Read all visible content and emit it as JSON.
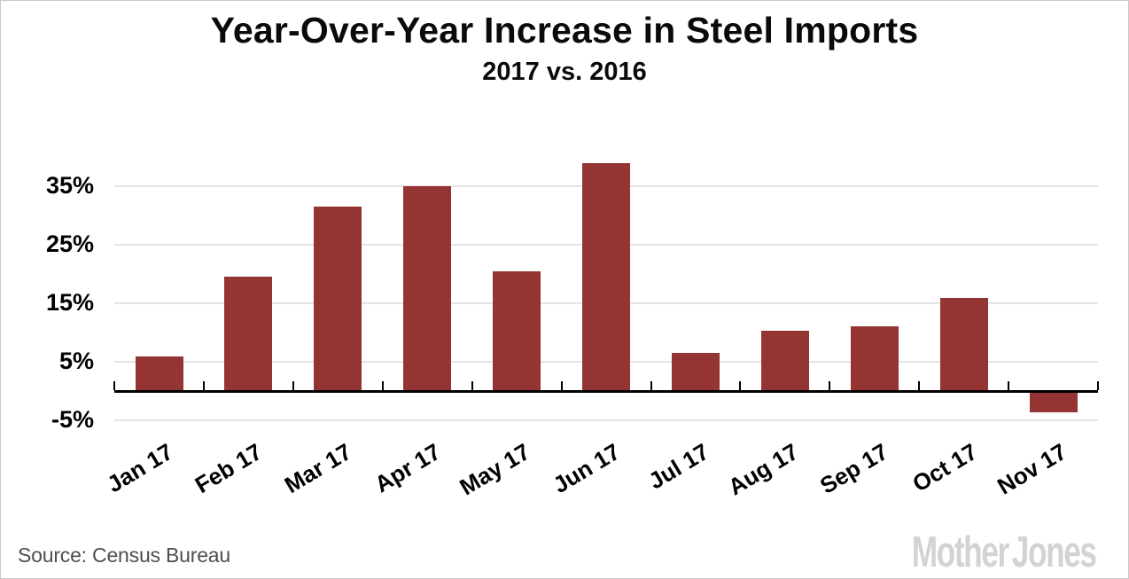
{
  "header": {
    "title": "Year-Over-Year Increase in Steel Imports",
    "subtitle": "2017 vs. 2016"
  },
  "footer": {
    "source": "Source: Census Bureau",
    "logo": "Mother Jones"
  },
  "colors": {
    "bar": "#943534",
    "axis": "#000000",
    "gridline": "#e4e4e4",
    "title_text": "#0a0a0a",
    "source_text": "#4f4f4f",
    "logo_text": "#d3d3d3",
    "frame_border": "#c9c9c9"
  },
  "chart_data": {
    "type": "bar",
    "title": "Year-Over-Year Increase in Steel Imports",
    "subtitle": "2017 vs. 2016",
    "categories": [
      "Jan 17",
      "Feb 17",
      "Mar 17",
      "Apr 17",
      "May 17",
      "Jun 17",
      "Jul 17",
      "Aug 17",
      "Sep 17",
      "Oct 17",
      "Nov 17"
    ],
    "values": [
      5.9,
      19.6,
      31.5,
      35.0,
      20.5,
      39.0,
      6.5,
      10.3,
      11.0,
      15.9,
      -3.3
    ],
    "unit": "%",
    "xlabel": "",
    "ylabel": "",
    "yticks": [
      35,
      25,
      15,
      5,
      -5
    ],
    "ytick_labels": [
      "35%",
      "25%",
      "15%",
      "5%",
      "-5%"
    ],
    "ylim": [
      -7.5,
      41
    ],
    "grid": "horizontal-only",
    "legend": "none",
    "bar_color": "#943534"
  }
}
